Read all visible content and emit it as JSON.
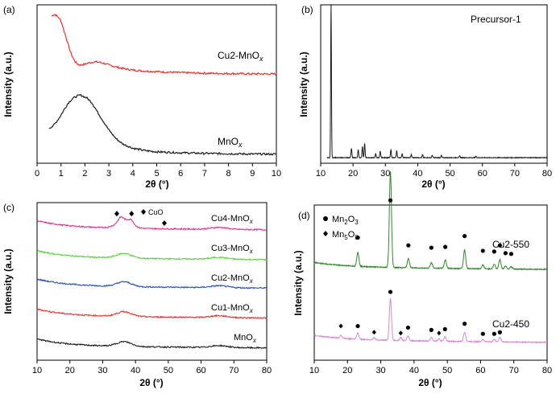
{
  "colors": {
    "red": "#e8312e",
    "black": "#1a1a1a",
    "magenta": "#e0318f",
    "green": "#5ecf3f",
    "blue": "#2a4fb0",
    "darkgreen": "#2e8a2a",
    "pink": "#d98ad0"
  },
  "chart_data": [
    {
      "type": "line",
      "panel_label": "(a)",
      "xlabel": "2θ (°)",
      "ylabel": "Intensity (a.u.)",
      "xlim": [
        0,
        10
      ],
      "xticks": [
        "0",
        "1",
        "2",
        "3",
        "4",
        "5",
        "6",
        "7",
        "8",
        "9",
        "10"
      ],
      "series": [
        {
          "name": "Cu2-MnOx",
          "label_main": "Cu2-MnO",
          "label_sub": "x",
          "color": "red",
          "x": [
            0.6,
            0.75,
            0.9,
            1.0,
            1.1,
            1.2,
            1.3,
            1.4,
            1.5,
            1.6,
            1.7,
            1.8,
            2.0,
            2.2,
            2.4,
            2.6,
            2.8,
            3.0,
            3.3,
            3.6,
            4.0,
            4.5,
            5.0,
            6.0,
            7.0,
            8.0,
            9.0,
            10.0
          ],
          "y": [
            0.93,
            0.94,
            0.92,
            0.9,
            0.85,
            0.8,
            0.75,
            0.7,
            0.665,
            0.64,
            0.625,
            0.62,
            0.625,
            0.635,
            0.64,
            0.638,
            0.63,
            0.62,
            0.608,
            0.598,
            0.588,
            0.582,
            0.578,
            0.572,
            0.568,
            0.566,
            0.564,
            0.563
          ]
        },
        {
          "name": "MnOx",
          "label_main": "MnO",
          "label_sub": "x",
          "color": "black",
          "x": [
            0.5,
            0.7,
            0.9,
            1.1,
            1.3,
            1.5,
            1.7,
            1.8,
            1.9,
            2.1,
            2.3,
            2.5,
            2.7,
            3.0,
            3.3,
            3.6,
            4.0,
            4.5,
            5.0,
            6.0,
            7.0,
            8.0,
            9.0,
            10.0
          ],
          "y": [
            0.22,
            0.24,
            0.28,
            0.33,
            0.38,
            0.41,
            0.425,
            0.43,
            0.425,
            0.41,
            0.38,
            0.33,
            0.28,
            0.21,
            0.155,
            0.12,
            0.095,
            0.08,
            0.072,
            0.066,
            0.062,
            0.06,
            0.058,
            0.057
          ]
        }
      ]
    },
    {
      "type": "line",
      "panel_label": "(b)",
      "xlabel": "2θ (°)",
      "ylabel": "Intensity (a.u.)",
      "xlim": [
        10,
        80
      ],
      "xticks": [
        "10",
        "20",
        "30",
        "40",
        "50",
        "60",
        "70",
        "80"
      ],
      "series": [
        {
          "name": "Precursor-1",
          "color": "black",
          "peaks": [
            [
              13.2,
              0.97
            ],
            [
              19.5,
              0.06
            ],
            [
              21.6,
              0.05
            ],
            [
              22.9,
              0.07
            ],
            [
              23.6,
              0.09
            ],
            [
              27.0,
              0.025
            ],
            [
              28.4,
              0.04
            ],
            [
              31.7,
              0.05
            ],
            [
              33.5,
              0.045
            ],
            [
              35.2,
              0.025
            ],
            [
              38.0,
              0.02
            ],
            [
              41.5,
              0.02
            ],
            [
              44.5,
              0.015
            ],
            [
              47.3,
              0.015
            ],
            [
              53.0,
              0.012
            ],
            [
              58.0,
              0.01
            ]
          ],
          "baseline": 0.035
        }
      ]
    },
    {
      "type": "line",
      "panel_label": "(c)",
      "xlabel": "2θ (°)",
      "ylabel": "Intensity (a.u.)",
      "xlim": [
        10,
        80
      ],
      "xticks": [
        "10",
        "20",
        "30",
        "40",
        "50",
        "60",
        "70",
        "80"
      ],
      "marker_legend": "CuO",
      "series": [
        {
          "name": "Cu4-MnOx",
          "label_main": "Cu4-MnO",
          "label_sub": "x",
          "color": "magenta",
          "offset": 0.84,
          "broad": 0.05,
          "cuo_peaks": [
            35.5,
            38.7
          ]
        },
        {
          "name": "Cu3-MnOx",
          "label_main": "Cu3-MnO",
          "label_sub": "x",
          "color": "green",
          "offset": 0.65,
          "broad": 0.03
        },
        {
          "name": "Cu2-MnOx",
          "label_main": "Cu2-MnO",
          "label_sub": "x",
          "color": "blue",
          "offset": 0.47,
          "broad": 0.03
        },
        {
          "name": "Cu1-MnOx",
          "label_main": "Cu1-MnO",
          "label_sub": "x",
          "color": "red",
          "offset": 0.28,
          "broad": 0.03
        },
        {
          "name": "MnOx",
          "label_main": "MnO",
          "label_sub": "x",
          "color": "black",
          "offset": 0.09,
          "broad": 0.03
        }
      ],
      "markers": [
        [
          34.3,
          0.93
        ],
        [
          38.8,
          0.93
        ],
        [
          48.8,
          0.87
        ]
      ]
    },
    {
      "type": "line",
      "panel_label": "(d)",
      "xlabel": "2θ (°)",
      "ylabel": "Intensity (a.u.)",
      "xlim": [
        10,
        80
      ],
      "xticks": [
        "10",
        "20",
        "30",
        "40",
        "50",
        "60",
        "70",
        "80"
      ],
      "legend": [
        {
          "symbol": "circle",
          "main": "Mn",
          "sub1": "2",
          "mid": "O",
          "sub2": "3"
        },
        {
          "symbol": "diamond",
          "main": "Mn",
          "sub1": "5",
          "mid": "O",
          "sub2": "8"
        }
      ],
      "series": [
        {
          "name": "Cu2-550",
          "color": "darkgreen",
          "baseline": 0.6,
          "peaks": [
            [
              23.1,
              0.09
            ],
            [
              32.9,
              0.62
            ],
            [
              38.3,
              0.06
            ],
            [
              45.2,
              0.035
            ],
            [
              49.4,
              0.055
            ],
            [
              55.2,
              0.12
            ],
            [
              60.7,
              0.025
            ],
            [
              64.1,
              0.03
            ],
            [
              65.8,
              0.06
            ],
            [
              67.5,
              0.02
            ],
            [
              69.2,
              0.015
            ]
          ]
        },
        {
          "name": "Cu2-450",
          "color": "pink",
          "baseline": 0.13,
          "peaks": [
            [
              18.0,
              0.02
            ],
            [
              23.1,
              0.04
            ],
            [
              28.0,
              0.015
            ],
            [
              32.9,
              0.27
            ],
            [
              36.0,
              0.02
            ],
            [
              38.2,
              0.03
            ],
            [
              45.2,
              0.025
            ],
            [
              47.5,
              0.015
            ],
            [
              49.3,
              0.03
            ],
            [
              55.2,
              0.06
            ],
            [
              60.7,
              0.015
            ],
            [
              64.1,
              0.015
            ],
            [
              65.8,
              0.03
            ]
          ]
        }
      ],
      "circle_markers": [
        [
          23.1,
          0.79
        ],
        [
          32.9,
          1.03
        ],
        [
          38.3,
          0.74
        ],
        [
          45.2,
          0.725
        ],
        [
          49.4,
          0.73
        ],
        [
          55.2,
          0.8
        ],
        [
          60.7,
          0.705
        ],
        [
          64.1,
          0.7
        ],
        [
          65.8,
          0.74
        ],
        [
          67.5,
          0.69
        ],
        [
          69.2,
          0.685
        ],
        [
          23.1,
          0.22
        ],
        [
          32.9,
          0.44
        ],
        [
          38.2,
          0.21
        ],
        [
          45.2,
          0.195
        ],
        [
          49.3,
          0.2
        ],
        [
          55.2,
          0.235
        ],
        [
          60.7,
          0.17
        ],
        [
          64.1,
          0.17
        ],
        [
          65.8,
          0.18
        ]
      ],
      "diamond_markers": [
        [
          18.0,
          0.22
        ],
        [
          28.0,
          0.18
        ],
        [
          36.0,
          0.175
        ],
        [
          47.5,
          0.175
        ]
      ]
    }
  ]
}
